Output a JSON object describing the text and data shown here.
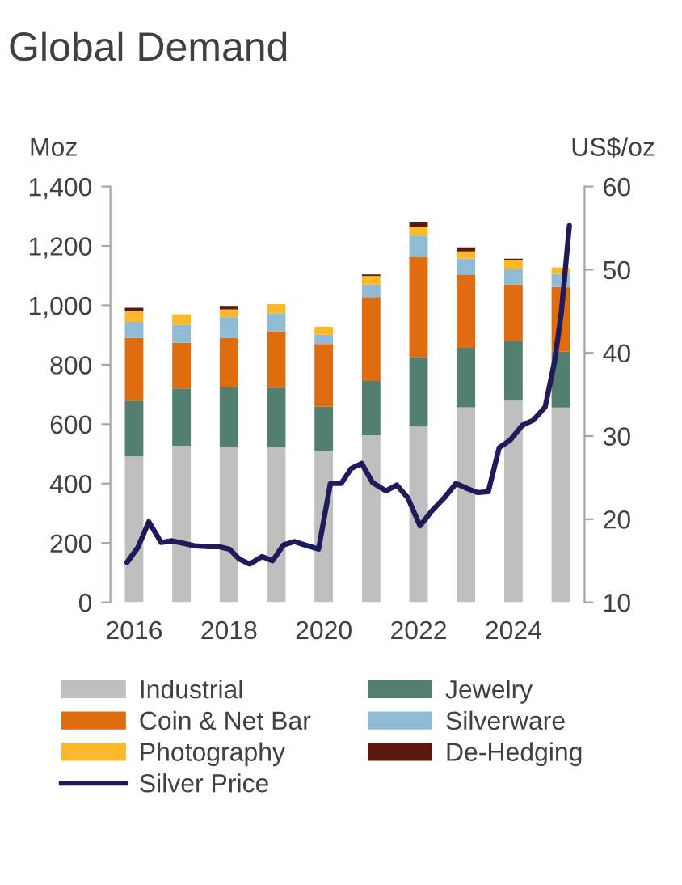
{
  "chart_data": {
    "type": "bar",
    "title": "Global Demand",
    "ylabel": "Moz",
    "y2label": "US$/oz",
    "stacked": true,
    "legend": "bottom",
    "grid": false,
    "marker": "none",
    "x": [
      2016,
      2017,
      2018,
      2019,
      2020,
      2021,
      2022,
      2023,
      2024,
      2025
    ],
    "xlim": [
      2015.5,
      2025.5
    ],
    "xticks": [
      2016,
      2018,
      2020,
      2022,
      2024
    ],
    "ylim": [
      0,
      1400
    ],
    "yticks": [
      0,
      200,
      400,
      600,
      800,
      {
        "value": 1000,
        "label": "1,000"
      },
      {
        "value": 1200,
        "label": "1,200"
      },
      {
        "value": 1400,
        "label": "1,400"
      }
    ],
    "y2lim": [
      10,
      60
    ],
    "y2ticks": [
      10,
      20,
      30,
      40,
      50,
      60
    ],
    "series": [
      {
        "name": "Industrial",
        "color": "#bfbfbf",
        "values": [
          491,
          527,
          524,
          523,
          510,
          563,
          592,
          657,
          679,
          656
        ]
      },
      {
        "name": "Jewelry",
        "color": "#527f6f",
        "values": [
          188,
          193,
          201,
          200,
          149,
          182,
          234,
          200,
          202,
          188
        ]
      },
      {
        "name": "Coin & Net Bar",
        "color": "#e06c10",
        "values": [
          211,
          154,
          165,
          189,
          211,
          283,
          336,
          245,
          190,
          218
        ]
      },
      {
        "name": "Silverware",
        "color": "#8fbcd4",
        "values": [
          54,
          60,
          70,
          61,
          31,
          42,
          73,
          55,
          53,
          44
        ]
      },
      {
        "name": "Photography",
        "color": "#fbb829",
        "values": [
          36,
          35,
          26,
          31,
          27,
          29,
          29,
          25,
          27,
          22
        ]
      },
      {
        "name": "De-Hedging",
        "color": "#5c1a0e",
        "values": [
          12,
          null,
          12,
          null,
          null,
          5,
          16,
          13,
          6,
          null
        ]
      },
      {
        "name": "Silver Price",
        "type": "line",
        "axis": "y2",
        "color": "#1f1a5a",
        "line_style": "solid",
        "x": [
          2015.85,
          2016.08,
          2016.31,
          2016.57,
          2016.8,
          2017.04,
          2017.27,
          2017.56,
          2017.78,
          2018.01,
          2018.22,
          2018.44,
          2018.7,
          2018.92,
          2019.15,
          2019.38,
          2019.6,
          2019.89,
          2020.14,
          2020.37,
          2020.58,
          2020.8,
          2021.03,
          2021.31,
          2021.54,
          2021.77,
          2022.03,
          2022.28,
          2022.53,
          2022.79,
          2023.02,
          2023.25,
          2023.47,
          2023.7,
          2023.93,
          2024.19,
          2024.42,
          2024.67,
          2024.87,
          2025.01,
          2025.18
        ],
        "values": [
          14.8,
          16.6,
          19.7,
          17.2,
          17.4,
          17.1,
          16.8,
          16.7,
          16.7,
          16.4,
          15.2,
          14.6,
          15.5,
          15.0,
          16.9,
          17.3,
          16.9,
          16.4,
          24.3,
          24.3,
          26.1,
          26.7,
          24.4,
          23.4,
          24.1,
          22.6,
          19.2,
          21.0,
          22.5,
          24.3,
          23.7,
          23.2,
          23.3,
          28.6,
          29.5,
          31.3,
          31.9,
          33.5,
          39.0,
          44.8,
          55.3
        ]
      }
    ]
  }
}
